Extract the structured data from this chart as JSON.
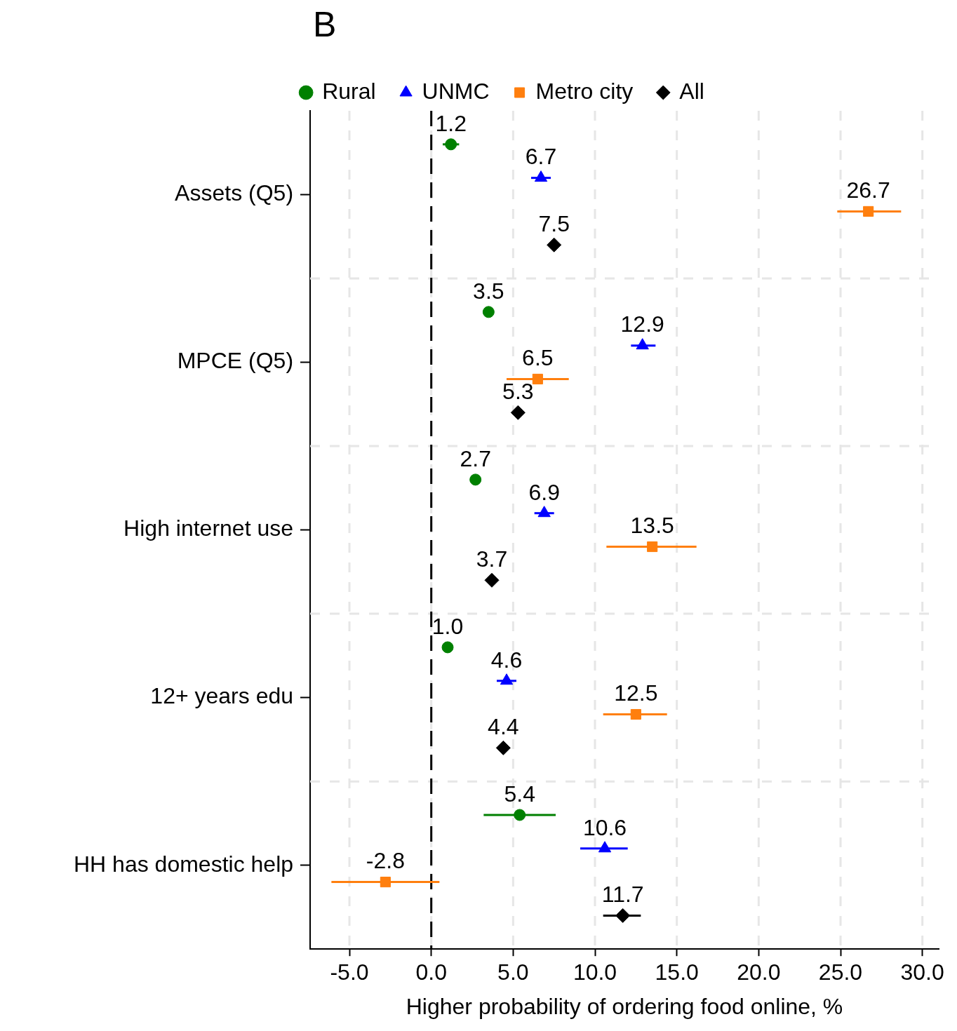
{
  "chart_data": {
    "type": "scatter",
    "orientation": "horizontal",
    "title": "B",
    "xlabel": "Higher probability of ordering food online, %",
    "categories": [
      "Assets (Q5)",
      "MPCE (Q5)",
      "High internet use",
      "12+ years edu",
      "HH has domestic help"
    ],
    "xlim": [
      -7.4,
      31
    ],
    "xticks": [
      {
        "value": -5,
        "label": "-5.0"
      },
      {
        "value": 0,
        "label": "0.0"
      },
      {
        "value": 5,
        "label": "5.0"
      },
      {
        "value": 10,
        "label": "10.0"
      },
      {
        "value": 15,
        "label": "15.0"
      },
      {
        "value": 20,
        "label": "20.0"
      },
      {
        "value": 25,
        "label": "25.0"
      },
      {
        "value": 30,
        "label": "30.0"
      }
    ],
    "grid": true,
    "legend": "top",
    "ref_lines": [
      {
        "axis": "x",
        "value": 0,
        "color": "#000000",
        "line_style": "dashed"
      }
    ],
    "series": [
      {
        "name": "Rural",
        "color": "#008000",
        "marker": "circle",
        "values": [
          1.2,
          3.5,
          2.7,
          1.0,
          5.4
        ],
        "value_labels": [
          "1.2",
          "3.5",
          "2.7",
          "1.0",
          "5.4"
        ],
        "errors": [
          [
            0.7,
            1.7
          ],
          null,
          null,
          null,
          [
            3.2,
            7.6
          ]
        ]
      },
      {
        "name": "UNMC",
        "color": "#0000ff",
        "marker": "triangle",
        "values": [
          6.7,
          12.9,
          6.9,
          4.6,
          10.6
        ],
        "value_labels": [
          "6.7",
          "12.9",
          "6.9",
          "4.6",
          "10.6"
        ],
        "errors": [
          [
            6.1,
            7.3
          ],
          [
            12.2,
            13.7
          ],
          [
            6.3,
            7.5
          ],
          [
            4.0,
            5.2
          ],
          [
            9.1,
            12.0
          ]
        ]
      },
      {
        "name": "Metro city",
        "color": "#ff7f0e",
        "marker": "square",
        "values": [
          26.7,
          6.5,
          13.5,
          12.5,
          -2.8
        ],
        "value_labels": [
          "26.7",
          "6.5",
          "13.5",
          "12.5",
          "-2.8"
        ],
        "errors": [
          [
            24.8,
            28.7
          ],
          [
            4.6,
            8.4
          ],
          [
            10.7,
            16.2
          ],
          [
            10.5,
            14.4
          ],
          [
            -6.1,
            0.5
          ]
        ]
      },
      {
        "name": "All",
        "color": "#000000",
        "marker": "diamond",
        "values": [
          7.5,
          5.3,
          3.7,
          4.4,
          11.7
        ],
        "value_labels": [
          "7.5",
          "5.3",
          "3.7",
          "4.4",
          "11.7"
        ],
        "errors": [
          null,
          null,
          null,
          null,
          [
            10.5,
            12.8
          ]
        ]
      }
    ]
  }
}
